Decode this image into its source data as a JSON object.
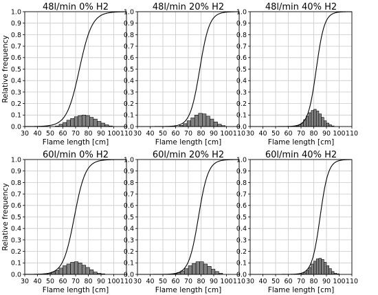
{
  "chart_data": [
    {
      "type": "bar",
      "title": "48l/min 0% H2",
      "xlabel": "Flame length [cm]",
      "ylabel": "Relative frequency",
      "xlim": [
        30,
        110
      ],
      "ylim": [
        0,
        1.0
      ],
      "x_ticks": [
        "30",
        "40",
        "50",
        "60",
        "70",
        "80",
        "90",
        "100",
        "110"
      ],
      "y_ticks": [
        "0.0",
        "0.1",
        "0.2",
        "0.3",
        "0.4",
        "0.5",
        "0.6",
        "0.7",
        "0.8",
        "0.9",
        "1.0"
      ],
      "grid": true,
      "histogram": {
        "bin_edges": [
          54,
          57,
          60,
          63,
          66,
          69,
          72,
          75,
          78,
          81,
          84,
          87,
          90,
          93,
          96,
          99
        ],
        "values": [
          0.005,
          0.02,
          0.035,
          0.055,
          0.07,
          0.085,
          0.095,
          0.1,
          0.095,
          0.08,
          0.065,
          0.045,
          0.03,
          0.015,
          0.005
        ]
      },
      "cdf": {
        "center": 73,
        "scale": 8.5
      }
    },
    {
      "type": "bar",
      "title": "48l/min 20% H2",
      "xlabel": "Flame length [cm]",
      "ylabel": "",
      "xlim": [
        30,
        110
      ],
      "ylim": [
        0,
        1.0
      ],
      "x_ticks": [
        "30",
        "40",
        "50",
        "60",
        "70",
        "80",
        "90",
        "100",
        "110"
      ],
      "y_ticks": [
        "0.0",
        "0.1",
        "0.2",
        "0.3",
        "0.4",
        "0.5",
        "0.6",
        "0.7",
        "0.8",
        "0.9",
        "1.0"
      ],
      "grid": true,
      "histogram": {
        "bin_edges": [
          63,
          66,
          69,
          72,
          75,
          78,
          81,
          84,
          87,
          90,
          93,
          96,
          99
        ],
        "values": [
          0.01,
          0.025,
          0.05,
          0.075,
          0.1,
          0.115,
          0.11,
          0.09,
          0.065,
          0.04,
          0.02,
          0.008
        ]
      },
      "cdf": {
        "center": 79,
        "scale": 6.5
      }
    },
    {
      "type": "bar",
      "title": "48l/min 40% H2",
      "xlabel": "Flame length [cm]",
      "ylabel": "",
      "xlim": [
        30,
        110
      ],
      "ylim": [
        0,
        1.0
      ],
      "x_ticks": [
        "30",
        "40",
        "50",
        "60",
        "70",
        "80",
        "90",
        "100",
        "110"
      ],
      "y_ticks": [
        "0.0",
        "0.1",
        "0.2",
        "0.3",
        "0.4",
        "0.5",
        "0.6",
        "0.7",
        "0.8",
        "0.9",
        "1.0"
      ],
      "grid": true,
      "histogram": {
        "bin_edges": [
          66,
          68,
          70,
          72,
          74,
          76,
          78,
          80,
          82,
          84,
          86,
          88,
          90,
          92,
          94,
          96
        ],
        "values": [
          0.005,
          0.015,
          0.03,
          0.06,
          0.09,
          0.12,
          0.14,
          0.15,
          0.135,
          0.11,
          0.08,
          0.05,
          0.03,
          0.015,
          0.005
        ]
      },
      "cdf": {
        "center": 82,
        "scale": 5.5
      }
    },
    {
      "type": "bar",
      "title": "60l/min 0% H2",
      "xlabel": "Flame length [cm]",
      "ylabel": "Relative frequency",
      "xlim": [
        30,
        110
      ],
      "ylim": [
        0,
        1.0
      ],
      "x_ticks": [
        "30",
        "40",
        "50",
        "60",
        "70",
        "80",
        "90",
        "100",
        "110"
      ],
      "y_ticks": [
        "0.0",
        "0.1",
        "0.2",
        "0.3",
        "0.4",
        "0.5",
        "0.6",
        "0.7",
        "0.8",
        "0.9",
        "1.0"
      ],
      "grid": true,
      "histogram": {
        "bin_edges": [
          45,
          48,
          51,
          54,
          57,
          60,
          63,
          66,
          69,
          72,
          75,
          78,
          81,
          84,
          87,
          90,
          93
        ],
        "values": [
          0.005,
          0.01,
          0.02,
          0.035,
          0.055,
          0.075,
          0.09,
          0.105,
          0.11,
          0.1,
          0.08,
          0.06,
          0.04,
          0.02,
          0.01,
          0.005
        ]
      },
      "cdf": {
        "center": 69,
        "scale": 7.5
      }
    },
    {
      "type": "bar",
      "title": "60l/min 20% H2",
      "xlabel": "Flame length [cm]",
      "ylabel": "",
      "xlim": [
        30,
        110
      ],
      "ylim": [
        0,
        1.0
      ],
      "x_ticks": [
        "30",
        "40",
        "50",
        "60",
        "70",
        "80",
        "90",
        "100",
        "110"
      ],
      "y_ticks": [
        "0.0",
        "0.1",
        "0.2",
        "0.3",
        "0.4",
        "0.5",
        "0.6",
        "0.7",
        "0.8",
        "0.9",
        "1.0"
      ],
      "grid": true,
      "histogram": {
        "bin_edges": [
          58,
          61,
          64,
          67,
          70,
          73,
          76,
          79,
          82,
          85,
          88,
          91,
          94,
          97
        ],
        "values": [
          0.005,
          0.015,
          0.03,
          0.05,
          0.075,
          0.095,
          0.11,
          0.11,
          0.09,
          0.07,
          0.045,
          0.025,
          0.01
        ]
      },
      "cdf": {
        "center": 78,
        "scale": 6.5
      }
    },
    {
      "type": "bar",
      "title": "60l/min 40% H2",
      "xlabel": "Flame length [cm]",
      "ylabel": "",
      "xlim": [
        30,
        110
      ],
      "ylim": [
        0,
        1.0
      ],
      "x_ticks": [
        "30",
        "40",
        "50",
        "60",
        "70",
        "80",
        "90",
        "100",
        "110"
      ],
      "y_ticks": [
        "0.0",
        "0.1",
        "0.2",
        "0.3",
        "0.4",
        "0.5",
        "0.6",
        "0.7",
        "0.8",
        "0.9",
        "1.0"
      ],
      "grid": true,
      "histogram": {
        "bin_edges": [
          70,
          72,
          74,
          76,
          78,
          80,
          82,
          84,
          86,
          88,
          90,
          92,
          94,
          96,
          98,
          100
        ],
        "values": [
          0.005,
          0.015,
          0.035,
          0.06,
          0.09,
          0.115,
          0.135,
          0.14,
          0.13,
          0.105,
          0.075,
          0.05,
          0.025,
          0.01,
          0.005
        ]
      },
      "cdf": {
        "center": 85,
        "scale": 5.5
      }
    }
  ],
  "colors": {
    "bar_fill": "#808080",
    "bar_edge": "#000000",
    "grid": "#c8c8c8",
    "cdf_line": "#000000"
  }
}
